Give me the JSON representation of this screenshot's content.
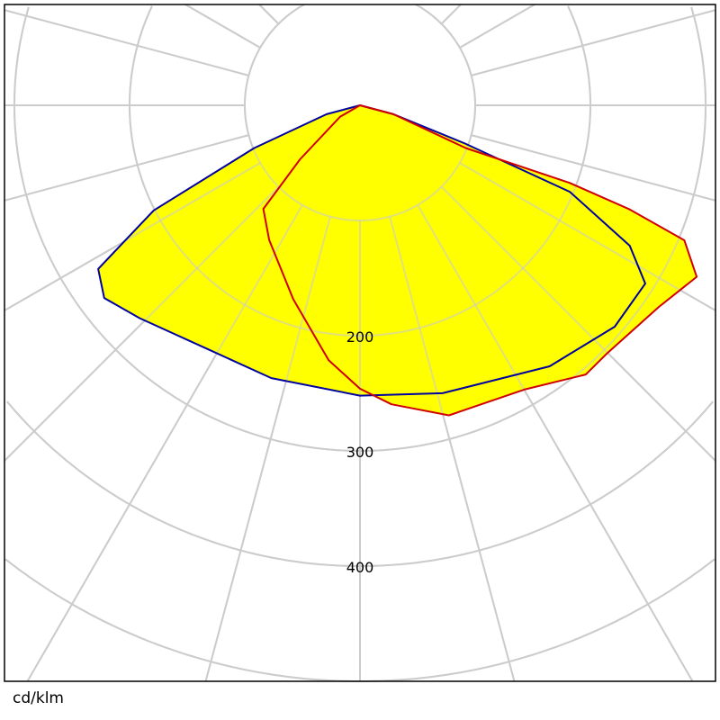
{
  "chart_data": {
    "type": "polar-line",
    "unit_label": "cd/klm",
    "radial_ticks": [
      100,
      200,
      300,
      400,
      500,
      600,
      700
    ],
    "radial_tick_labels": [
      "200",
      "300",
      "400"
    ],
    "angle_grid_step_deg": 15,
    "grid": true,
    "fill_color": "#ffff00",
    "grid_color": "#cccccc",
    "series": [
      {
        "color": "#0000a0",
        "points": [
          [
            -90,
            0
          ],
          [
            -75,
            30
          ],
          [
            -68,
            99
          ],
          [
            -63,
            201
          ],
          [
            -58,
            268
          ],
          [
            -53,
            278
          ],
          [
            -46,
            266
          ],
          [
            -31,
            249
          ],
          [
            -18,
            249
          ],
          [
            0,
            252
          ],
          [
            16,
            260
          ],
          [
            36,
            280
          ],
          [
            49,
            293
          ],
          [
            58,
            292
          ],
          [
            62.5,
            264
          ],
          [
            67.6,
            197
          ],
          [
            70,
            97
          ],
          [
            75,
            30
          ],
          [
            90,
            0
          ]
        ]
      },
      {
        "color": "#d00000",
        "points": [
          [
            -90,
            0
          ],
          [
            -60,
            20
          ],
          [
            -48,
            70
          ],
          [
            -43,
            123
          ],
          [
            -34,
            141
          ],
          [
            -19,
            178
          ],
          [
            -7,
            223
          ],
          [
            0,
            246
          ],
          [
            6,
            261
          ],
          [
            16,
            280
          ],
          [
            30,
            285
          ],
          [
            40,
            305
          ],
          [
            45,
            304
          ],
          [
            56,
            313
          ],
          [
            63,
            328
          ],
          [
            67.4,
            305
          ],
          [
            68.9,
            251
          ],
          [
            69.7,
            194
          ],
          [
            68,
            99
          ],
          [
            75,
            30
          ],
          [
            90,
            0
          ]
        ]
      }
    ]
  }
}
